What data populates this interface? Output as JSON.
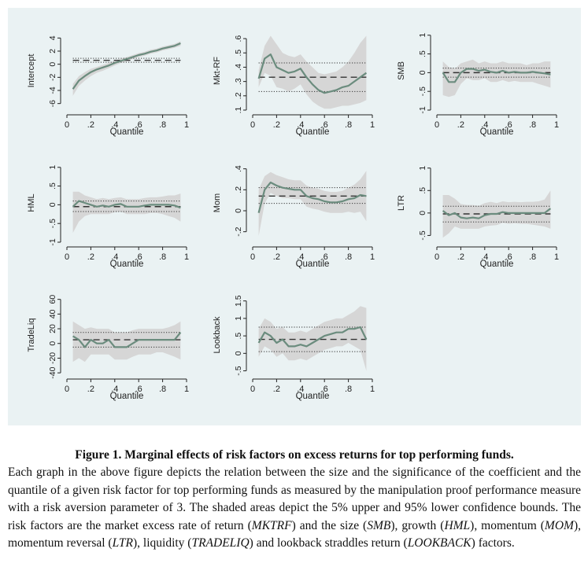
{
  "figure": {
    "x_tick_labels": [
      "0",
      ".2",
      ".4",
      ".6",
      ".8",
      "1"
    ],
    "x_axis_title": "Quantile"
  },
  "chart_data": [
    {
      "type": "line",
      "ylabel": "Intercept",
      "ylim": [
        -7,
        5
      ],
      "yticks": [
        -6,
        -4,
        -2,
        0,
        2,
        4
      ],
      "ytick_labels": [
        "-6",
        "-4",
        "-2",
        "0",
        "2",
        "4"
      ],
      "xlim": [
        0,
        1
      ],
      "xlabel": "Quantile",
      "x": [
        0.05,
        0.1,
        0.15,
        0.2,
        0.25,
        0.3,
        0.35,
        0.4,
        0.45,
        0.5,
        0.55,
        0.6,
        0.65,
        0.7,
        0.75,
        0.8,
        0.85,
        0.9,
        0.95
      ],
      "estimate": [
        -3.8,
        -2.5,
        -1.8,
        -1.2,
        -0.8,
        -0.5,
        -0.2,
        0.2,
        0.5,
        0.8,
        1.1,
        1.4,
        1.6,
        1.9,
        2.1,
        2.4,
        2.6,
        2.8,
        3.2
      ],
      "upper": [
        -3.0,
        -1.8,
        -1.2,
        -0.7,
        -0.4,
        -0.1,
        0.2,
        0.5,
        0.8,
        1.1,
        1.4,
        1.7,
        1.9,
        2.2,
        2.4,
        2.7,
        2.9,
        3.1,
        3.5
      ],
      "lower": [
        -4.8,
        -3.3,
        -2.5,
        -1.8,
        -1.3,
        -1.0,
        -0.6,
        -0.2,
        0.2,
        0.5,
        0.8,
        1.1,
        1.3,
        1.6,
        1.8,
        2.1,
        2.3,
        2.5,
        2.8
      ],
      "ols": 0.6,
      "ols_upper": 0.9,
      "ols_lower": 0.3
    },
    {
      "type": "line",
      "ylabel": "Mkt-RF",
      "ylim": [
        0.1,
        0.65
      ],
      "yticks": [
        0.1,
        0.2,
        0.3,
        0.4,
        0.5,
        0.6
      ],
      "ytick_labels": [
        ".1",
        ".2",
        ".3",
        ".4",
        ".5",
        ".6"
      ],
      "xlim": [
        0,
        1
      ],
      "xlabel": "Quantile",
      "x": [
        0.05,
        0.1,
        0.15,
        0.2,
        0.25,
        0.3,
        0.35,
        0.4,
        0.45,
        0.5,
        0.55,
        0.6,
        0.65,
        0.7,
        0.75,
        0.8,
        0.85,
        0.9,
        0.95
      ],
      "estimate": [
        0.32,
        0.46,
        0.49,
        0.4,
        0.38,
        0.36,
        0.37,
        0.39,
        0.33,
        0.28,
        0.24,
        0.22,
        0.23,
        0.24,
        0.26,
        0.27,
        0.3,
        0.33,
        0.36
      ],
      "upper": [
        0.38,
        0.55,
        0.62,
        0.56,
        0.5,
        0.48,
        0.47,
        0.49,
        0.44,
        0.4,
        0.36,
        0.35,
        0.36,
        0.37,
        0.4,
        0.44,
        0.5,
        0.57,
        0.62
      ],
      "lower": [
        0.26,
        0.36,
        0.34,
        0.26,
        0.25,
        0.23,
        0.25,
        0.28,
        0.21,
        0.16,
        0.13,
        0.11,
        0.11,
        0.12,
        0.13,
        0.13,
        0.14,
        0.15,
        0.17
      ],
      "ols": 0.33,
      "ols_upper": 0.43,
      "ols_lower": 0.23
    },
    {
      "type": "line",
      "ylabel": "SMB",
      "ylim": [
        -1,
        1.1
      ],
      "yticks": [
        -1,
        -0.5,
        0,
        0.5,
        1
      ],
      "ytick_labels": [
        "-1",
        "-.5",
        "0",
        ".5",
        "1"
      ],
      "xlim": [
        0,
        1
      ],
      "xlabel": "Quantile",
      "x": [
        0.05,
        0.1,
        0.15,
        0.2,
        0.25,
        0.3,
        0.35,
        0.4,
        0.45,
        0.5,
        0.55,
        0.6,
        0.65,
        0.7,
        0.75,
        0.8,
        0.85,
        0.9,
        0.95
      ],
      "estimate": [
        0.0,
        -0.25,
        -0.25,
        0.0,
        0.1,
        0.1,
        0.05,
        0.08,
        0.02,
        0.0,
        0.05,
        0.0,
        0.02,
        0.0,
        0.0,
        0.02,
        0.0,
        -0.02,
        -0.05
      ],
      "upper": [
        0.3,
        0.15,
        0.1,
        0.25,
        0.3,
        0.35,
        0.25,
        0.3,
        0.25,
        0.25,
        0.3,
        0.25,
        0.25,
        0.25,
        0.2,
        0.25,
        0.25,
        0.3,
        0.3
      ],
      "lower": [
        -0.6,
        -0.65,
        -0.6,
        -0.3,
        -0.15,
        -0.2,
        -0.2,
        -0.15,
        -0.25,
        -0.25,
        -0.2,
        -0.25,
        -0.22,
        -0.25,
        -0.25,
        -0.25,
        -0.3,
        -0.35,
        -0.4
      ],
      "ols": 0.0,
      "ols_upper": 0.12,
      "ols_lower": -0.12
    },
    {
      "type": "line",
      "ylabel": "HML",
      "ylim": [
        -1,
        1.1
      ],
      "yticks": [
        -1,
        -0.5,
        0,
        0.5,
        1
      ],
      "ytick_labels": [
        "-1",
        "-.5",
        "0",
        ".5",
        "1"
      ],
      "xlim": [
        0,
        1
      ],
      "xlabel": "Quantile",
      "x": [
        0.05,
        0.1,
        0.15,
        0.2,
        0.25,
        0.3,
        0.35,
        0.4,
        0.45,
        0.5,
        0.55,
        0.6,
        0.65,
        0.7,
        0.75,
        0.8,
        0.85,
        0.9,
        0.95
      ],
      "estimate": [
        -0.05,
        0.1,
        0.05,
        0.0,
        -0.05,
        -0.02,
        -0.05,
        0.0,
        0.02,
        -0.05,
        -0.05,
        -0.05,
        -0.02,
        0.0,
        0.0,
        0.0,
        0.0,
        -0.02,
        -0.08
      ],
      "upper": [
        0.35,
        0.35,
        0.25,
        0.2,
        0.15,
        0.18,
        0.15,
        0.18,
        0.2,
        0.15,
        0.15,
        0.15,
        0.18,
        0.2,
        0.2,
        0.22,
        0.25,
        0.25,
        0.3
      ],
      "lower": [
        -0.75,
        -0.45,
        -0.3,
        -0.25,
        -0.25,
        -0.25,
        -0.25,
        -0.2,
        -0.18,
        -0.25,
        -0.25,
        -0.25,
        -0.25,
        -0.22,
        -0.22,
        -0.25,
        -0.3,
        -0.35,
        -0.45
      ],
      "ols": -0.05,
      "ols_upper": 0.1,
      "ols_lower": -0.18
    },
    {
      "type": "line",
      "ylabel": "Mom",
      "ylim": [
        -0.3,
        0.45
      ],
      "yticks": [
        -0.2,
        0,
        0.2,
        0.4
      ],
      "ytick_labels": [
        "-.2",
        "0",
        ".2",
        ".4"
      ],
      "xlim": [
        0,
        1
      ],
      "xlabel": "Quantile",
      "x": [
        0.05,
        0.1,
        0.15,
        0.2,
        0.25,
        0.3,
        0.35,
        0.4,
        0.45,
        0.5,
        0.55,
        0.6,
        0.65,
        0.7,
        0.75,
        0.8,
        0.85,
        0.9,
        0.95
      ],
      "estimate": [
        -0.02,
        0.2,
        0.27,
        0.24,
        0.22,
        0.21,
        0.2,
        0.2,
        0.14,
        0.12,
        0.11,
        0.09,
        0.08,
        0.08,
        0.09,
        0.11,
        0.12,
        0.15,
        0.14
      ],
      "upper": [
        0.2,
        0.33,
        0.37,
        0.34,
        0.32,
        0.3,
        0.29,
        0.29,
        0.24,
        0.22,
        0.21,
        0.19,
        0.18,
        0.18,
        0.19,
        0.22,
        0.25,
        0.3,
        0.38
      ],
      "lower": [
        -0.24,
        0.07,
        0.17,
        0.14,
        0.12,
        0.12,
        0.11,
        0.11,
        0.04,
        0.02,
        0.01,
        -0.01,
        -0.02,
        -0.02,
        -0.02,
        -0.01,
        -0.02,
        -0.01,
        -0.1
      ],
      "ols": 0.14,
      "ols_upper": 0.22,
      "ols_lower": 0.07
    },
    {
      "type": "line",
      "ylabel": "LTR",
      "ylim": [
        -0.65,
        1.1
      ],
      "yticks": [
        -0.5,
        0,
        0.5,
        1
      ],
      "ytick_labels": [
        "-.5",
        "0",
        ".5",
        "1"
      ],
      "xlim": [
        0,
        1
      ],
      "xlabel": "Quantile",
      "x": [
        0.05,
        0.1,
        0.15,
        0.2,
        0.25,
        0.3,
        0.35,
        0.4,
        0.45,
        0.5,
        0.55,
        0.6,
        0.65,
        0.7,
        0.75,
        0.8,
        0.85,
        0.9,
        0.95
      ],
      "estimate": [
        0.05,
        -0.05,
        0.0,
        -0.1,
        -0.12,
        -0.1,
        -0.12,
        -0.05,
        -0.02,
        -0.02,
        0.02,
        0.0,
        0.0,
        0.0,
        0.0,
        0.0,
        0.0,
        0.0,
        0.1
      ],
      "upper": [
        0.4,
        0.4,
        0.32,
        0.2,
        0.18,
        0.18,
        0.16,
        0.22,
        0.25,
        0.22,
        0.26,
        0.24,
        0.25,
        0.24,
        0.25,
        0.25,
        0.26,
        0.3,
        0.5
      ],
      "lower": [
        -0.55,
        -0.45,
        -0.3,
        -0.35,
        -0.35,
        -0.35,
        -0.35,
        -0.3,
        -0.28,
        -0.27,
        -0.22,
        -0.24,
        -0.23,
        -0.24,
        -0.24,
        -0.26,
        -0.28,
        -0.3,
        -0.35
      ],
      "ols": -0.02,
      "ols_upper": 0.15,
      "ols_lower": -0.2
    },
    {
      "type": "line",
      "ylabel": "TradeLiq",
      "ylim": [
        -42,
        65
      ],
      "yticks": [
        -40,
        -20,
        0,
        20,
        40,
        60
      ],
      "ytick_labels": [
        "-40",
        "-20",
        "0",
        "20",
        "40",
        "60"
      ],
      "xlim": [
        0,
        1
      ],
      "xlabel": "Quantile",
      "x": [
        0.05,
        0.1,
        0.15,
        0.2,
        0.25,
        0.3,
        0.35,
        0.4,
        0.45,
        0.5,
        0.55,
        0.6,
        0.65,
        0.7,
        0.75,
        0.8,
        0.85,
        0.9,
        0.95
      ],
      "estimate": [
        10,
        5,
        -5,
        5,
        0,
        0,
        5,
        -5,
        -5,
        -5,
        0,
        5,
        5,
        5,
        5,
        5,
        5,
        5,
        15
      ],
      "upper": [
        30,
        25,
        20,
        22,
        20,
        20,
        20,
        15,
        15,
        15,
        18,
        20,
        20,
        20,
        20,
        20,
        22,
        25,
        30
      ],
      "lower": [
        -25,
        -20,
        -25,
        -15,
        -15,
        -15,
        -15,
        -22,
        -22,
        -22,
        -18,
        -15,
        -15,
        -15,
        -12,
        -12,
        -15,
        -18,
        -22
      ],
      "ols": 5,
      "ols_upper": 15,
      "ols_lower": -5
    },
    {
      "type": "line",
      "ylabel": "Lookback",
      "ylim": [
        -0.6,
        1.65
      ],
      "yticks": [
        -0.5,
        0,
        0.5,
        1,
        1.5
      ],
      "ytick_labels": [
        "-.5",
        "0",
        ".5",
        "1",
        "1.5"
      ],
      "xlim": [
        0,
        1
      ],
      "xlabel": "Quantile",
      "x": [
        0.05,
        0.1,
        0.15,
        0.2,
        0.25,
        0.3,
        0.35,
        0.4,
        0.45,
        0.5,
        0.55,
        0.6,
        0.65,
        0.7,
        0.75,
        0.8,
        0.85,
        0.9,
        0.95
      ],
      "estimate": [
        0.3,
        0.6,
        0.5,
        0.3,
        0.4,
        0.2,
        0.2,
        0.25,
        0.2,
        0.3,
        0.4,
        0.5,
        0.55,
        0.6,
        0.6,
        0.7,
        0.7,
        0.75,
        0.4
      ],
      "upper": [
        0.7,
        1.0,
        0.9,
        0.7,
        0.75,
        0.6,
        0.6,
        0.65,
        0.6,
        0.7,
        0.8,
        0.9,
        0.95,
        1.0,
        1.0,
        1.1,
        1.2,
        1.35,
        1.3
      ],
      "lower": [
        -0.1,
        0.2,
        0.1,
        -0.1,
        0.0,
        -0.2,
        -0.2,
        -0.15,
        -0.2,
        -0.1,
        0.0,
        0.1,
        0.15,
        0.2,
        0.2,
        0.3,
        0.2,
        0.1,
        -0.5
      ],
      "ols": 0.4,
      "ols_upper": 0.75,
      "ols_lower": 0.05
    }
  ],
  "caption": {
    "title": "Figure 1. Marginal effects of risk factors on excess returns for top performing funds.",
    "seg1": "Each graph in the above figure depicts the relation between the size and the significance of the coefficient and the quantile of a given risk factor for top performing funds as measured by the manipulation proof performance measure with a risk aversion parameter of 3. The shaded areas depict the 5% upper and 95% lower confidence bounds. The risk factors are the market excess rate of return (",
    "mktrf": "MKTRF",
    "seg2": ") and the size (",
    "smb": "SMB",
    "seg3": "), growth (",
    "hml": "HML",
    "seg4": "), momentum (",
    "mom": "MOM",
    "seg5": "), momentum reversal (",
    "ltr": "LTR",
    "seg6": "), liquidity (",
    "tradeliq": "TRADELIQ",
    "seg7": ") and lookback straddles return (",
    "lookback": "LOOKBACK",
    "seg8": ") factors."
  },
  "colors": {
    "background": "#eaf2f3",
    "band": "#d6d6d6",
    "line": "#6b8c7e",
    "ols": "#333333"
  }
}
